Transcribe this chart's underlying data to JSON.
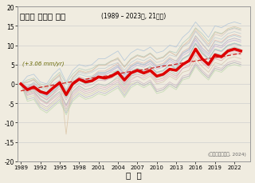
{
  "title_korean": "연평균 해수면 높이",
  "title_suffix": "(1989 – 2023년, 21개소)",
  "xlabel": "연  도",
  "annotation": "(+3.06 mm/yr)",
  "source": "(국립해양조사원, 2024)",
  "years": [
    1989,
    1990,
    1991,
    1992,
    1993,
    1994,
    1995,
    1996,
    1997,
    1998,
    1999,
    2000,
    2001,
    2002,
    2003,
    2004,
    2005,
    2006,
    2007,
    2008,
    2009,
    2010,
    2011,
    2012,
    2013,
    2014,
    2015,
    2016,
    2017,
    2018,
    2019,
    2020,
    2021,
    2022,
    2023
  ],
  "ylim": [
    -20,
    20
  ],
  "yticks": [
    -20,
    -15,
    -10,
    -5,
    0,
    5,
    10,
    15,
    20
  ],
  "xticks": [
    1989,
    1992,
    1995,
    1998,
    2001,
    2004,
    2007,
    2010,
    2013,
    2016,
    2019,
    2022
  ],
  "mean_line": [
    0.0,
    -1.5,
    -0.8,
    -2.0,
    -2.5,
    -1.0,
    0.3,
    -2.8,
    0.0,
    1.2,
    0.5,
    0.8,
    1.8,
    1.5,
    2.0,
    3.0,
    1.0,
    2.8,
    3.5,
    2.8,
    3.5,
    2.0,
    2.5,
    3.8,
    3.5,
    5.0,
    6.0,
    9.0,
    6.5,
    5.0,
    7.5,
    7.0,
    8.5,
    9.0,
    8.5
  ],
  "trend_line": [
    -1.8,
    -1.5,
    -1.2,
    -0.9,
    -0.6,
    -0.3,
    0.0,
    0.3,
    0.6,
    0.9,
    1.2,
    1.5,
    1.8,
    2.0,
    2.3,
    2.6,
    2.9,
    3.2,
    3.4,
    3.7,
    4.0,
    4.3,
    4.6,
    4.8,
    5.1,
    5.4,
    5.7,
    5.9,
    6.2,
    6.5,
    6.8,
    7.0,
    7.3,
    7.6,
    7.9
  ],
  "individual_lines": [
    [
      0.0,
      -1.0,
      0.5,
      -1.5,
      -2.5,
      -1.0,
      0.5,
      -2.5,
      0.5,
      1.5,
      1.0,
      1.5,
      2.5,
      2.5,
      3.0,
      3.5,
      1.5,
      3.5,
      4.0,
      3.5,
      4.5,
      3.0,
      3.5,
      5.0,
      4.5,
      6.5,
      7.5,
      10.5,
      8.5,
      6.5,
      9.0,
      8.5,
      10.0,
      10.5,
      10.0
    ],
    [
      0.0,
      -2.0,
      -1.5,
      -3.0,
      -4.0,
      -2.5,
      -0.5,
      -3.5,
      -0.5,
      1.0,
      0.0,
      0.5,
      1.5,
      1.0,
      1.5,
      2.5,
      0.0,
      2.0,
      2.5,
      2.0,
      3.0,
      1.0,
      1.5,
      3.0,
      2.0,
      4.0,
      4.5,
      7.5,
      5.5,
      4.0,
      6.5,
      6.0,
      7.5,
      8.0,
      7.5
    ],
    [
      0.0,
      -0.5,
      0.2,
      -1.0,
      -2.0,
      0.0,
      1.0,
      -2.0,
      1.0,
      2.5,
      2.0,
      2.0,
      3.0,
      3.0,
      3.5,
      4.5,
      2.5,
      4.5,
      5.5,
      5.0,
      6.0,
      4.5,
      5.0,
      6.5,
      6.0,
      8.0,
      9.0,
      12.5,
      10.5,
      8.5,
      11.0,
      10.5,
      12.0,
      12.5,
      12.0
    ],
    [
      0.0,
      -2.5,
      -2.0,
      -4.0,
      -5.0,
      -3.5,
      -2.0,
      -5.5,
      -2.0,
      -0.5,
      -1.5,
      -1.0,
      0.0,
      -0.5,
      0.5,
      1.5,
      -1.0,
      1.5,
      2.0,
      1.0,
      2.0,
      0.0,
      0.5,
      2.0,
      1.0,
      3.0,
      3.5,
      6.5,
      4.5,
      3.0,
      5.5,
      5.0,
      6.5,
      7.0,
      6.5
    ],
    [
      0.0,
      0.5,
      1.0,
      -0.5,
      -1.0,
      0.8,
      2.0,
      -1.5,
      1.5,
      3.0,
      2.5,
      3.0,
      4.0,
      4.0,
      5.0,
      5.5,
      3.5,
      5.5,
      6.5,
      6.0,
      7.0,
      5.5,
      6.0,
      7.5,
      7.0,
      9.5,
      10.5,
      13.5,
      11.5,
      9.5,
      12.0,
      11.5,
      13.0,
      13.5,
      13.0
    ],
    [
      0.0,
      -3.0,
      -2.5,
      -5.0,
      -6.0,
      -4.5,
      -3.0,
      -6.5,
      -3.0,
      -1.5,
      -2.5,
      -2.0,
      -1.0,
      -1.5,
      -0.5,
      0.5,
      -2.0,
      0.5,
      1.0,
      0.0,
      1.0,
      -1.5,
      -1.0,
      0.5,
      -0.5,
      2.0,
      2.5,
      5.5,
      3.5,
      2.0,
      4.5,
      4.0,
      5.5,
      6.0,
      5.5
    ],
    [
      0.0,
      -1.5,
      -1.0,
      -2.5,
      -3.5,
      -2.0,
      -0.5,
      -3.5,
      -0.5,
      1.0,
      0.0,
      0.5,
      2.0,
      1.5,
      2.5,
      3.5,
      1.0,
      3.0,
      4.0,
      3.5,
      4.5,
      3.0,
      3.5,
      5.0,
      4.0,
      6.5,
      7.5,
      10.5,
      8.0,
      6.5,
      9.0,
      8.5,
      10.0,
      10.5,
      10.0
    ],
    [
      0.0,
      -1.0,
      -0.3,
      -2.0,
      -3.0,
      -1.2,
      0.3,
      -3.0,
      0.3,
      1.8,
      1.0,
      1.5,
      2.8,
      2.8,
      3.8,
      4.8,
      2.3,
      4.3,
      5.3,
      4.8,
      5.8,
      4.3,
      4.8,
      6.3,
      5.3,
      7.8,
      8.8,
      11.8,
      9.3,
      7.8,
      10.3,
      9.8,
      11.3,
      11.8,
      11.3
    ],
    [
      0.0,
      -3.5,
      -3.0,
      -5.5,
      -6.5,
      -5.0,
      -3.5,
      -7.0,
      -3.5,
      -2.0,
      -3.0,
      -2.5,
      -1.5,
      -2.0,
      -1.0,
      0.0,
      -2.5,
      0.0,
      0.5,
      -0.5,
      0.5,
      -2.0,
      -1.5,
      0.0,
      -1.0,
      1.5,
      2.0,
      5.0,
      3.0,
      1.5,
      4.0,
      3.5,
      5.0,
      5.5,
      5.0
    ],
    [
      0.0,
      1.0,
      1.5,
      0.0,
      -0.5,
      1.5,
      3.0,
      0.0,
      2.5,
      4.0,
      3.5,
      4.0,
      5.0,
      5.0,
      6.0,
      6.5,
      4.5,
      6.5,
      7.5,
      7.0,
      8.0,
      6.5,
      7.0,
      8.5,
      8.0,
      10.5,
      12.0,
      14.5,
      13.0,
      11.0,
      13.5,
      13.0,
      14.0,
      14.5,
      14.0
    ],
    [
      0.0,
      -1.8,
      -1.2,
      -3.2,
      -4.2,
      -2.7,
      -1.2,
      -4.2,
      -1.2,
      0.3,
      -0.7,
      -0.2,
      1.0,
      0.8,
      1.8,
      3.0,
      0.3,
      2.8,
      3.8,
      3.3,
      4.3,
      2.8,
      3.3,
      4.8,
      3.8,
      6.3,
      7.3,
      10.3,
      7.8,
      6.3,
      8.8,
      8.3,
      9.8,
      10.3,
      9.8
    ],
    [
      0.0,
      -0.8,
      0.0,
      -1.8,
      -2.8,
      -0.8,
      0.8,
      -2.8,
      0.5,
      1.8,
      1.3,
      1.8,
      3.3,
      3.3,
      4.3,
      5.3,
      2.8,
      4.8,
      5.8,
      5.3,
      6.3,
      4.8,
      5.3,
      6.8,
      5.8,
      8.3,
      9.3,
      12.3,
      10.3,
      8.3,
      11.3,
      10.8,
      12.3,
      12.8,
      12.3
    ],
    [
      0.0,
      -2.2,
      -1.8,
      -3.8,
      -4.8,
      -3.2,
      -2.0,
      -5.5,
      -2.0,
      -0.5,
      -1.5,
      -1.0,
      0.0,
      -0.5,
      0.5,
      2.0,
      -0.5,
      2.0,
      3.0,
      2.5,
      3.5,
      1.5,
      2.0,
      3.5,
      2.5,
      5.0,
      6.0,
      9.0,
      6.5,
      5.5,
      8.0,
      7.5,
      9.0,
      9.5,
      9.0
    ],
    [
      0.0,
      -4.0,
      -3.5,
      -6.0,
      -7.0,
      -5.5,
      -4.0,
      -7.5,
      -4.0,
      -2.5,
      -3.5,
      -3.0,
      -2.0,
      -2.5,
      -1.5,
      -0.5,
      -3.0,
      -0.5,
      0.5,
      -0.5,
      0.5,
      -2.0,
      -1.5,
      0.0,
      -1.0,
      1.5,
      2.0,
      5.0,
      3.0,
      1.5,
      4.0,
      3.5,
      5.0,
      5.5,
      5.0
    ],
    [
      0.0,
      0.3,
      1.0,
      -0.8,
      -1.5,
      0.8,
      2.3,
      -1.8,
      1.8,
      3.3,
      2.8,
      3.3,
      4.8,
      4.8,
      5.8,
      6.3,
      4.3,
      6.3,
      7.3,
      6.8,
      7.8,
      6.3,
      6.8,
      8.3,
      7.3,
      9.8,
      10.8,
      13.8,
      11.8,
      9.8,
      12.8,
      12.3,
      13.8,
      14.3,
      13.8
    ],
    [
      0.0,
      -1.5,
      -0.8,
      -2.5,
      -3.5,
      -2.0,
      -0.5,
      -3.5,
      -0.5,
      1.0,
      0.0,
      0.5,
      2.0,
      1.5,
      2.5,
      3.5,
      1.0,
      3.0,
      4.0,
      3.5,
      4.5,
      3.0,
      3.5,
      5.0,
      4.0,
      6.5,
      7.5,
      10.5,
      8.0,
      6.5,
      9.0,
      8.5,
      10.0,
      10.5,
      10.0
    ],
    [
      0.0,
      0.5,
      1.2,
      -0.5,
      -1.2,
      1.0,
      2.5,
      -13.0,
      1.5,
      3.5,
      3.0,
      3.5,
      4.8,
      4.8,
      5.8,
      6.8,
      4.3,
      6.3,
      7.3,
      6.8,
      7.8,
      6.3,
      6.8,
      8.3,
      7.3,
      9.8,
      11.3,
      14.3,
      12.3,
      10.3,
      13.3,
      12.8,
      14.3,
      14.8,
      14.3
    ],
    [
      0.0,
      -4.5,
      -4.0,
      -6.5,
      -7.5,
      -6.0,
      -4.5,
      -8.0,
      -4.5,
      -3.0,
      -4.0,
      -3.5,
      -2.5,
      -3.0,
      -2.0,
      -1.0,
      -3.5,
      -1.0,
      0.0,
      -1.0,
      0.0,
      -2.5,
      -2.0,
      -0.5,
      -1.5,
      1.0,
      1.5,
      4.5,
      2.5,
      1.0,
      3.5,
      3.0,
      4.5,
      5.0,
      4.5
    ],
    [
      0.0,
      2.0,
      2.5,
      0.5,
      0.0,
      2.5,
      4.0,
      0.5,
      3.5,
      5.0,
      4.5,
      5.0,
      6.5,
      6.5,
      7.5,
      8.5,
      6.0,
      8.0,
      9.0,
      8.5,
      9.5,
      8.0,
      8.5,
      10.0,
      9.5,
      12.0,
      13.5,
      16.0,
      14.0,
      12.0,
      15.0,
      14.5,
      15.5,
      16.0,
      15.5
    ],
    [
      0.0,
      -2.8,
      -2.2,
      -4.2,
      -5.2,
      -3.8,
      -2.5,
      -5.8,
      -2.5,
      -1.0,
      -2.0,
      -1.5,
      -0.5,
      -1.0,
      0.0,
      1.0,
      -1.5,
      1.0,
      2.0,
      1.5,
      2.5,
      0.5,
      1.0,
      2.5,
      1.5,
      4.0,
      5.0,
      8.0,
      5.5,
      4.5,
      7.0,
      6.5,
      8.0,
      8.5,
      8.0
    ],
    [
      0.0,
      -1.2,
      -0.5,
      -2.2,
      -3.2,
      -1.7,
      -0.2,
      -3.2,
      -0.2,
      1.3,
      0.3,
      0.8,
      2.3,
      2.3,
      3.3,
      4.3,
      1.8,
      3.8,
      4.8,
      4.3,
      5.3,
      3.8,
      4.3,
      5.8,
      4.8,
      7.3,
      8.3,
      11.3,
      8.8,
      7.3,
      9.8,
      9.3,
      10.8,
      11.3,
      10.8
    ]
  ],
  "ind_colors": [
    "#c0c0c0",
    "#d4a0a0",
    "#a8c8d8",
    "#d0c0a8",
    "#b8c8d0",
    "#c8b0c0",
    "#b8d0a8",
    "#a8a8c8",
    "#d0d0a8",
    "#a8c8b8",
    "#c8a8c0",
    "#d8b0a8",
    "#a8c0c0",
    "#b0b0c8",
    "#d0c0c0",
    "#a0d0d0",
    "#d8c0a0",
    "#b8d8a8",
    "#a8c0d8",
    "#d8a8c0",
    "#c0a8d8"
  ],
  "bg_color": "#f0ece0",
  "mean_color": "#dd0000",
  "trend_color": "#cc0000",
  "grid_color": "#d0d0d0"
}
